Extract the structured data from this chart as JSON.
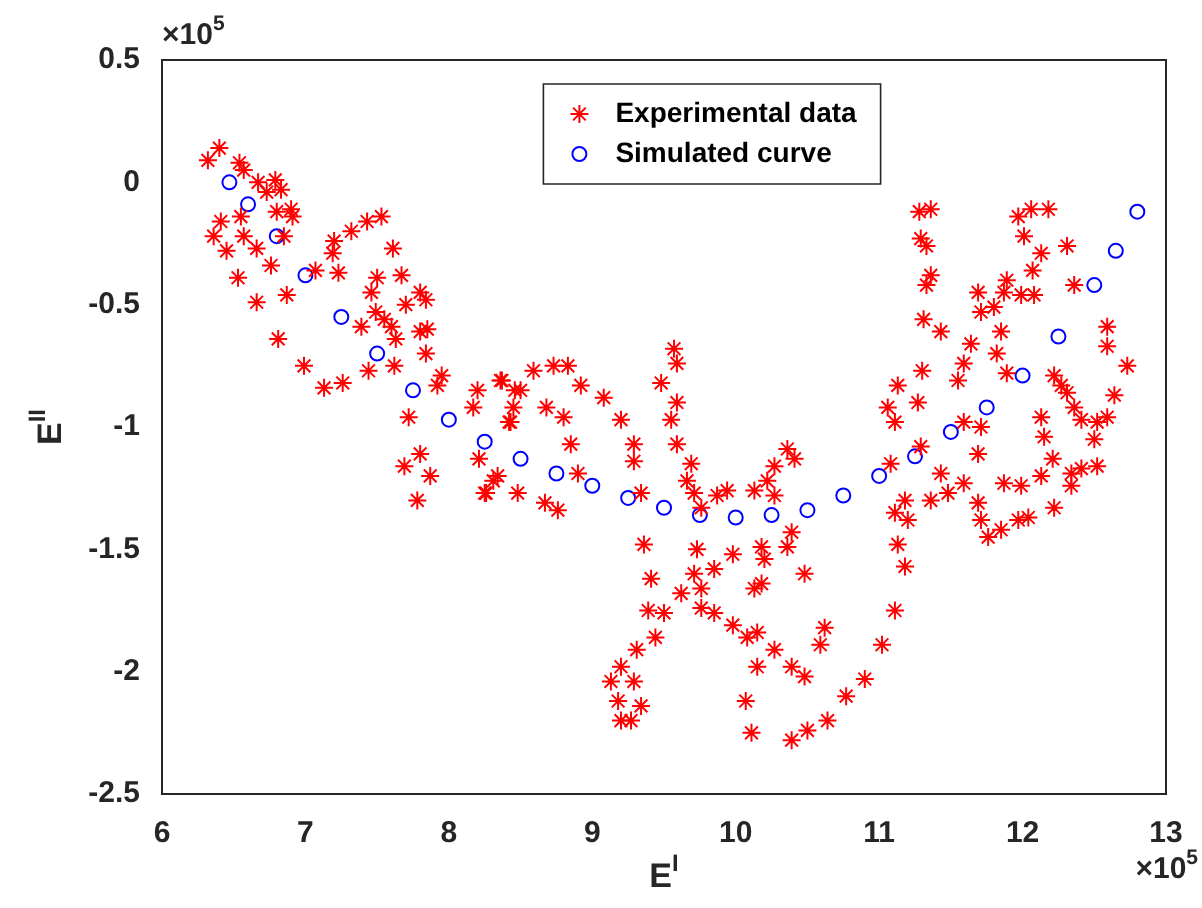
{
  "chart_data": {
    "type": "scatter",
    "xlabel": "E$^{I}$",
    "ylabel": "E$^{II}$",
    "annotations": [
      "×10$^{5}$",
      "×10$^{5}$"
    ],
    "xlim": [
      6,
      13
    ],
    "xticks": [
      6,
      7,
      8,
      9,
      10,
      11,
      12,
      13
    ],
    "ylim": [
      -2.5,
      0.5
    ],
    "yticks": [
      -2.5,
      -2,
      -1.5,
      -1,
      -0.5,
      0,
      0.5
    ],
    "grid": false,
    "legend": "top",
    "series": [
      {
        "name": "Experimental data",
        "color": "#ff0000",
        "marker": "cross",
        "x": [
          6.32,
          6.4,
          6.36,
          6.41,
          6.45,
          6.53,
          6.54,
          6.57,
          6.55,
          6.57,
          6.66,
          6.67,
          6.66,
          6.73,
          6.79,
          6.83,
          6.8,
          6.9,
          6.85,
          6.76,
          6.87,
          6.81,
          6.91,
          6.99,
          7.07,
          7.13,
          7.2,
          7.19,
          7.23,
          7.26,
          7.32,
          7.43,
          7.53,
          7.46,
          7.5,
          7.49,
          7.55,
          7.61,
          7.6,
          7.63,
          7.67,
          7.7,
          7.8,
          7.84,
          7.85,
          7.84,
          7.62,
          7.44,
          7.39,
          7.72,
          7.69,
          7.8,
          7.78,
          7.87,
          7.95,
          7.92,
          8.2,
          8.17,
          8.21,
          8.26,
          8.34,
          8.37,
          8.46,
          8.42,
          8.48,
          7.8,
          8.36,
          8.5,
          8.45,
          8.43,
          8.59,
          8.73,
          8.83,
          8.92,
          8.68,
          8.8,
          9.08,
          9.2,
          9.29,
          9.29,
          8.85,
          8.9,
          8.67,
          8.76,
          8.31,
          8.25,
          9.34,
          9.36,
          9.41,
          9.39,
          9.5,
          9.44,
          9.31,
          9.2,
          9.13,
          9.18,
          9.2,
          9.27,
          9.34,
          9.29,
          9.57,
          9.59,
          9.48,
          9.59,
          9.55,
          9.59,
          9.69,
          9.66,
          9.71,
          9.76,
          9.87,
          9.94,
          9.73,
          9.71,
          9.62,
          9.76,
          9.85,
          9.85,
          9.76,
          9.98,
          9.98,
          10.08,
          10.15,
          10.27,
          10.39,
          10.48,
          10.59,
          10.62,
          10.48,
          10.36,
          10.39,
          10.18,
          10.2,
          10.18,
          10.13,
          10.22,
          10.27,
          10.36,
          10.41,
          10.07,
          10.11,
          10.39,
          10.5,
          10.64,
          10.77,
          10.9,
          10.15,
          10.13,
          10.27,
          11.02,
          11.11,
          11.18,
          11.13,
          11.2,
          11.11,
          11.18,
          11.08,
          11.11,
          11.06,
          11.13,
          11.27,
          11.3,
          11.43,
          11.31,
          11.33,
          11.36,
          11.33,
          11.29,
          11.28,
          11.36,
          11.29,
          11.43,
          11.36,
          11.48,
          11.59,
          11.59,
          11.55,
          11.59,
          11.64,
          11.69,
          11.71,
          11.8,
          11.87,
          11.89,
          11.85,
          11.82,
          11.89,
          11.69,
          11.69,
          11.71,
          11.76,
          11.85,
          11.97,
          12.04,
          11.87,
          11.99,
          11.99,
          12.08,
          12.07,
          12.13,
          12.01,
          11.97,
          12.06,
          12.18,
          12.31,
          12.13,
          12.15,
          12.13,
          12.21,
          12.22,
          12.34,
          12.34,
          12.41,
          12.52,
          12.5,
          12.52,
          12.59,
          12.64,
          12.59,
          12.59,
          12.73,
          12.36,
          12.22,
          12.31,
          12.36,
          12.41,
          12.27,
          11.71
        ],
        "values": [
          0.09,
          0.14,
          -0.22,
          -0.16,
          -0.28,
          -0.39,
          0.08,
          0.05,
          -0.14,
          -0.22,
          -0.27,
          0,
          -0.49,
          -0.04,
          0.01,
          -0.03,
          -0.12,
          -0.11,
          -0.22,
          -0.34,
          -0.46,
          -0.64,
          -0.14,
          -0.75,
          -0.36,
          -0.84,
          -0.24,
          -0.29,
          -0.37,
          -0.82,
          -0.2,
          -0.16,
          -0.14,
          -0.45,
          -0.39,
          -0.53,
          -0.56,
          -0.27,
          -0.59,
          -0.64,
          -0.38,
          -0.5,
          -0.45,
          -0.48,
          -0.6,
          -0.7,
          -0.75,
          -0.77,
          -0.59,
          -0.96,
          -1.16,
          -1.11,
          -1.3,
          -1.2,
          -0.79,
          -0.83,
          -0.85,
          -0.92,
          -1.13,
          -1.27,
          -1.2,
          -0.81,
          -0.85,
          -0.98,
          -1.27,
          -0.61,
          -0.81,
          -0.85,
          -0.92,
          -0.98,
          -0.77,
          -0.75,
          -0.75,
          -0.83,
          -0.92,
          -0.96,
          -0.88,
          -0.97,
          -1.07,
          -1.14,
          -1.07,
          -1.19,
          -1.31,
          -1.34,
          -1.22,
          -1.27,
          -1.27,
          -1.48,
          -1.62,
          -1.75,
          -1.76,
          -1.86,
          -1.91,
          -1.98,
          -2.04,
          -2.12,
          -2.2,
          -2.2,
          -2.14,
          -2.04,
          -0.68,
          -0.74,
          -0.82,
          -0.9,
          -0.97,
          -1.07,
          -1.15,
          -1.22,
          -1.27,
          -1.33,
          -1.28,
          -1.26,
          -1.5,
          -1.6,
          -1.68,
          -1.74,
          -1.76,
          -1.58,
          -1.66,
          -1.52,
          -1.81,
          -1.86,
          -1.84,
          -1.91,
          -1.98,
          -2.02,
          -1.89,
          -1.82,
          -1.6,
          -1.49,
          -1.43,
          -1.49,
          -1.54,
          -1.64,
          -1.26,
          -1.22,
          -1.16,
          -1.09,
          -1.13,
          -2.12,
          -2.25,
          -2.28,
          -2.24,
          -2.2,
          -2.1,
          -2.03,
          -1.98,
          -1.66,
          -1.28,
          -1.89,
          -1.75,
          -1.57,
          -1.48,
          -1.38,
          -1.35,
          -1.3,
          -1.15,
          -0.98,
          -0.92,
          -0.83,
          -0.9,
          -0.77,
          -0.61,
          -0.56,
          -0.42,
          -0.38,
          -0.26,
          -0.23,
          -0.12,
          -0.11,
          -1.08,
          -1.19,
          -1.3,
          -1.27,
          -1.23,
          -0.98,
          -0.81,
          -0.74,
          -0.66,
          -0.45,
          -0.53,
          -0.51,
          -0.45,
          -0.4,
          -0.61,
          -0.7,
          -0.78,
          -1.11,
          -1.31,
          -1.38,
          -1.45,
          -1.42,
          -1.38,
          -1.37,
          -1.23,
          -1.24,
          -0.46,
          -0.46,
          -0.36,
          -0.29,
          -0.22,
          -0.14,
          -0.11,
          -0.11,
          -0.26,
          -0.96,
          -1.04,
          -1.2,
          -1.13,
          -1.33,
          -1.19,
          -1.24,
          -1.17,
          -1.16,
          -1.05,
          -0.98,
          -0.96,
          -0.87,
          -0.67,
          -0.59,
          -0.75,
          -0.42,
          -0.79,
          -0.86,
          -0.92,
          -0.97,
          -0.83,
          -1.0
        ]
      },
      {
        "name": "Simulated curve",
        "color": "#0000ff",
        "marker": "circle",
        "x": [
          6.47,
          6.6,
          6.8,
          7.0,
          7.25,
          7.5,
          7.75,
          8.0,
          8.25,
          8.5,
          8.75,
          9.0,
          9.25,
          9.5,
          9.75,
          10.0,
          10.25,
          10.5,
          10.75,
          11.0,
          11.25,
          11.5,
          11.75,
          12.0,
          12.25,
          12.5,
          12.65,
          12.8
        ],
        "values": [
          0,
          -0.09,
          -0.22,
          -0.38,
          -0.55,
          -0.7,
          -0.85,
          -0.97,
          -1.06,
          -1.13,
          -1.19,
          -1.24,
          -1.29,
          -1.33,
          -1.36,
          -1.37,
          -1.36,
          -1.34,
          -1.28,
          -1.2,
          -1.12,
          -1.02,
          -0.92,
          -0.79,
          -0.63,
          -0.42,
          -0.28,
          -0.12
        ]
      }
    ]
  }
}
